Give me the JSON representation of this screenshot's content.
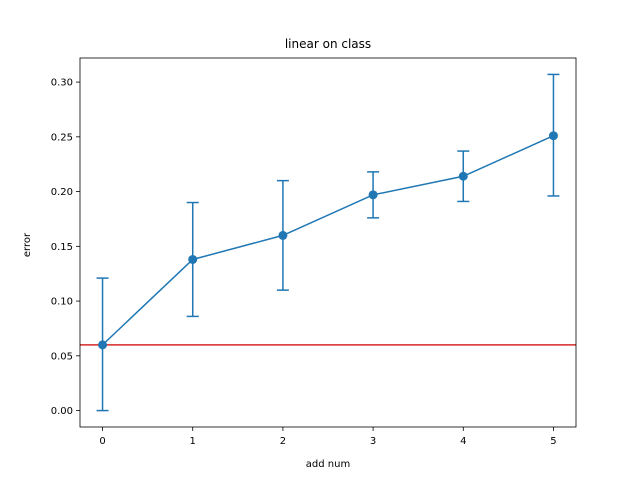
{
  "chart_data": {
    "type": "line",
    "title": "linear on class",
    "xlabel": "add num",
    "ylabel": "error",
    "x": [
      0,
      1,
      2,
      3,
      4,
      5
    ],
    "series": [
      {
        "values": [
          0.06,
          0.138,
          0.16,
          0.197,
          0.214,
          0.251
        ],
        "err_low": [
          0.0,
          0.086,
          0.11,
          0.176,
          0.191,
          0.196
        ],
        "err_high": [
          0.121,
          0.19,
          0.21,
          0.218,
          0.237,
          0.307
        ],
        "color": "#1f77b4",
        "marker": "circle"
      }
    ],
    "reference_line": {
      "y": 0.06,
      "color": "#d62728"
    },
    "xlim": [
      -0.25,
      5.25
    ],
    "ylim": [
      -0.015,
      0.322
    ],
    "xticks": [
      "0",
      "1",
      "2",
      "3",
      "4",
      "5"
    ],
    "yticks": [
      "0.00",
      "0.05",
      "0.10",
      "0.15",
      "0.20",
      "0.25",
      "0.30"
    ],
    "ytick_values": [
      0.0,
      0.05,
      0.1,
      0.15,
      0.2,
      0.25,
      0.3
    ],
    "grid": false,
    "legend": "none"
  }
}
